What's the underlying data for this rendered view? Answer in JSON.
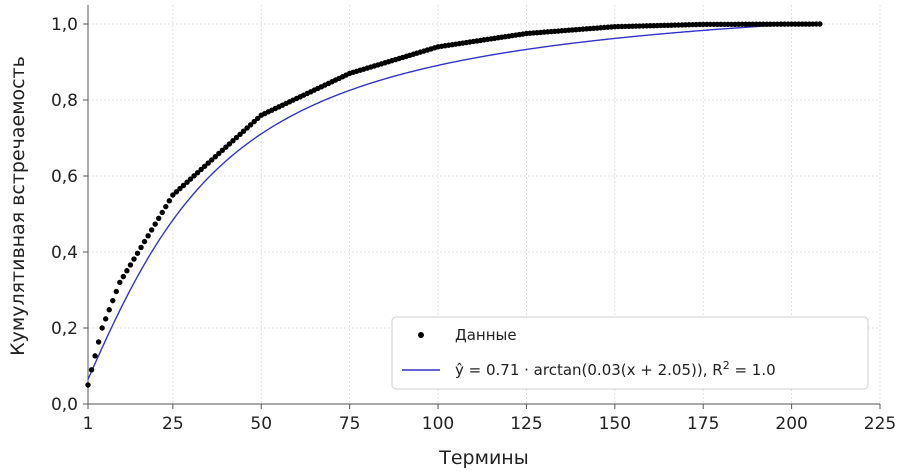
{
  "chart_data": {
    "type": "scatter",
    "xlabel": "Термины",
    "ylabel": "Кумулятивная встречаемость",
    "xlim": [
      1,
      225
    ],
    "ylim": [
      0,
      1.05
    ],
    "xticks": [
      1,
      25,
      50,
      75,
      100,
      125,
      150,
      175,
      200,
      225
    ],
    "xtick_labels": [
      "1",
      "25",
      "50",
      "75",
      "100",
      "125",
      "150",
      "175",
      "200",
      "225"
    ],
    "yticks": [
      0,
      0.2,
      0.4,
      0.6,
      0.8,
      1.0
    ],
    "ytick_labels": [
      "0,0",
      "0,2",
      "0,4",
      "0,6",
      "0,8",
      "1,0"
    ],
    "grid": true,
    "legend_position": "bottom-right",
    "series": [
      {
        "name": "Данные",
        "kind": "scatter",
        "color": "#000000",
        "x_range": [
          1,
          208
        ],
        "sample_points": [
          [
            1,
            0.05
          ],
          [
            2,
            0.09
          ],
          [
            5,
            0.2
          ],
          [
            10,
            0.32
          ],
          [
            25,
            0.55
          ],
          [
            50,
            0.76
          ],
          [
            75,
            0.87
          ],
          [
            100,
            0.94
          ],
          [
            125,
            0.975
          ],
          [
            150,
            0.993
          ],
          [
            175,
            0.999
          ],
          [
            208,
            1.0
          ]
        ]
      },
      {
        "name_parts": [
          "ŷ = 0.71 · arctan(0.03(x + 2.05)), R",
          "2",
          " = 1.0"
        ],
        "kind": "line",
        "color": "#3333cc",
        "a": 0.71,
        "b": 0.03,
        "c": 2.05,
        "x_range": [
          1,
          208
        ]
      }
    ]
  }
}
